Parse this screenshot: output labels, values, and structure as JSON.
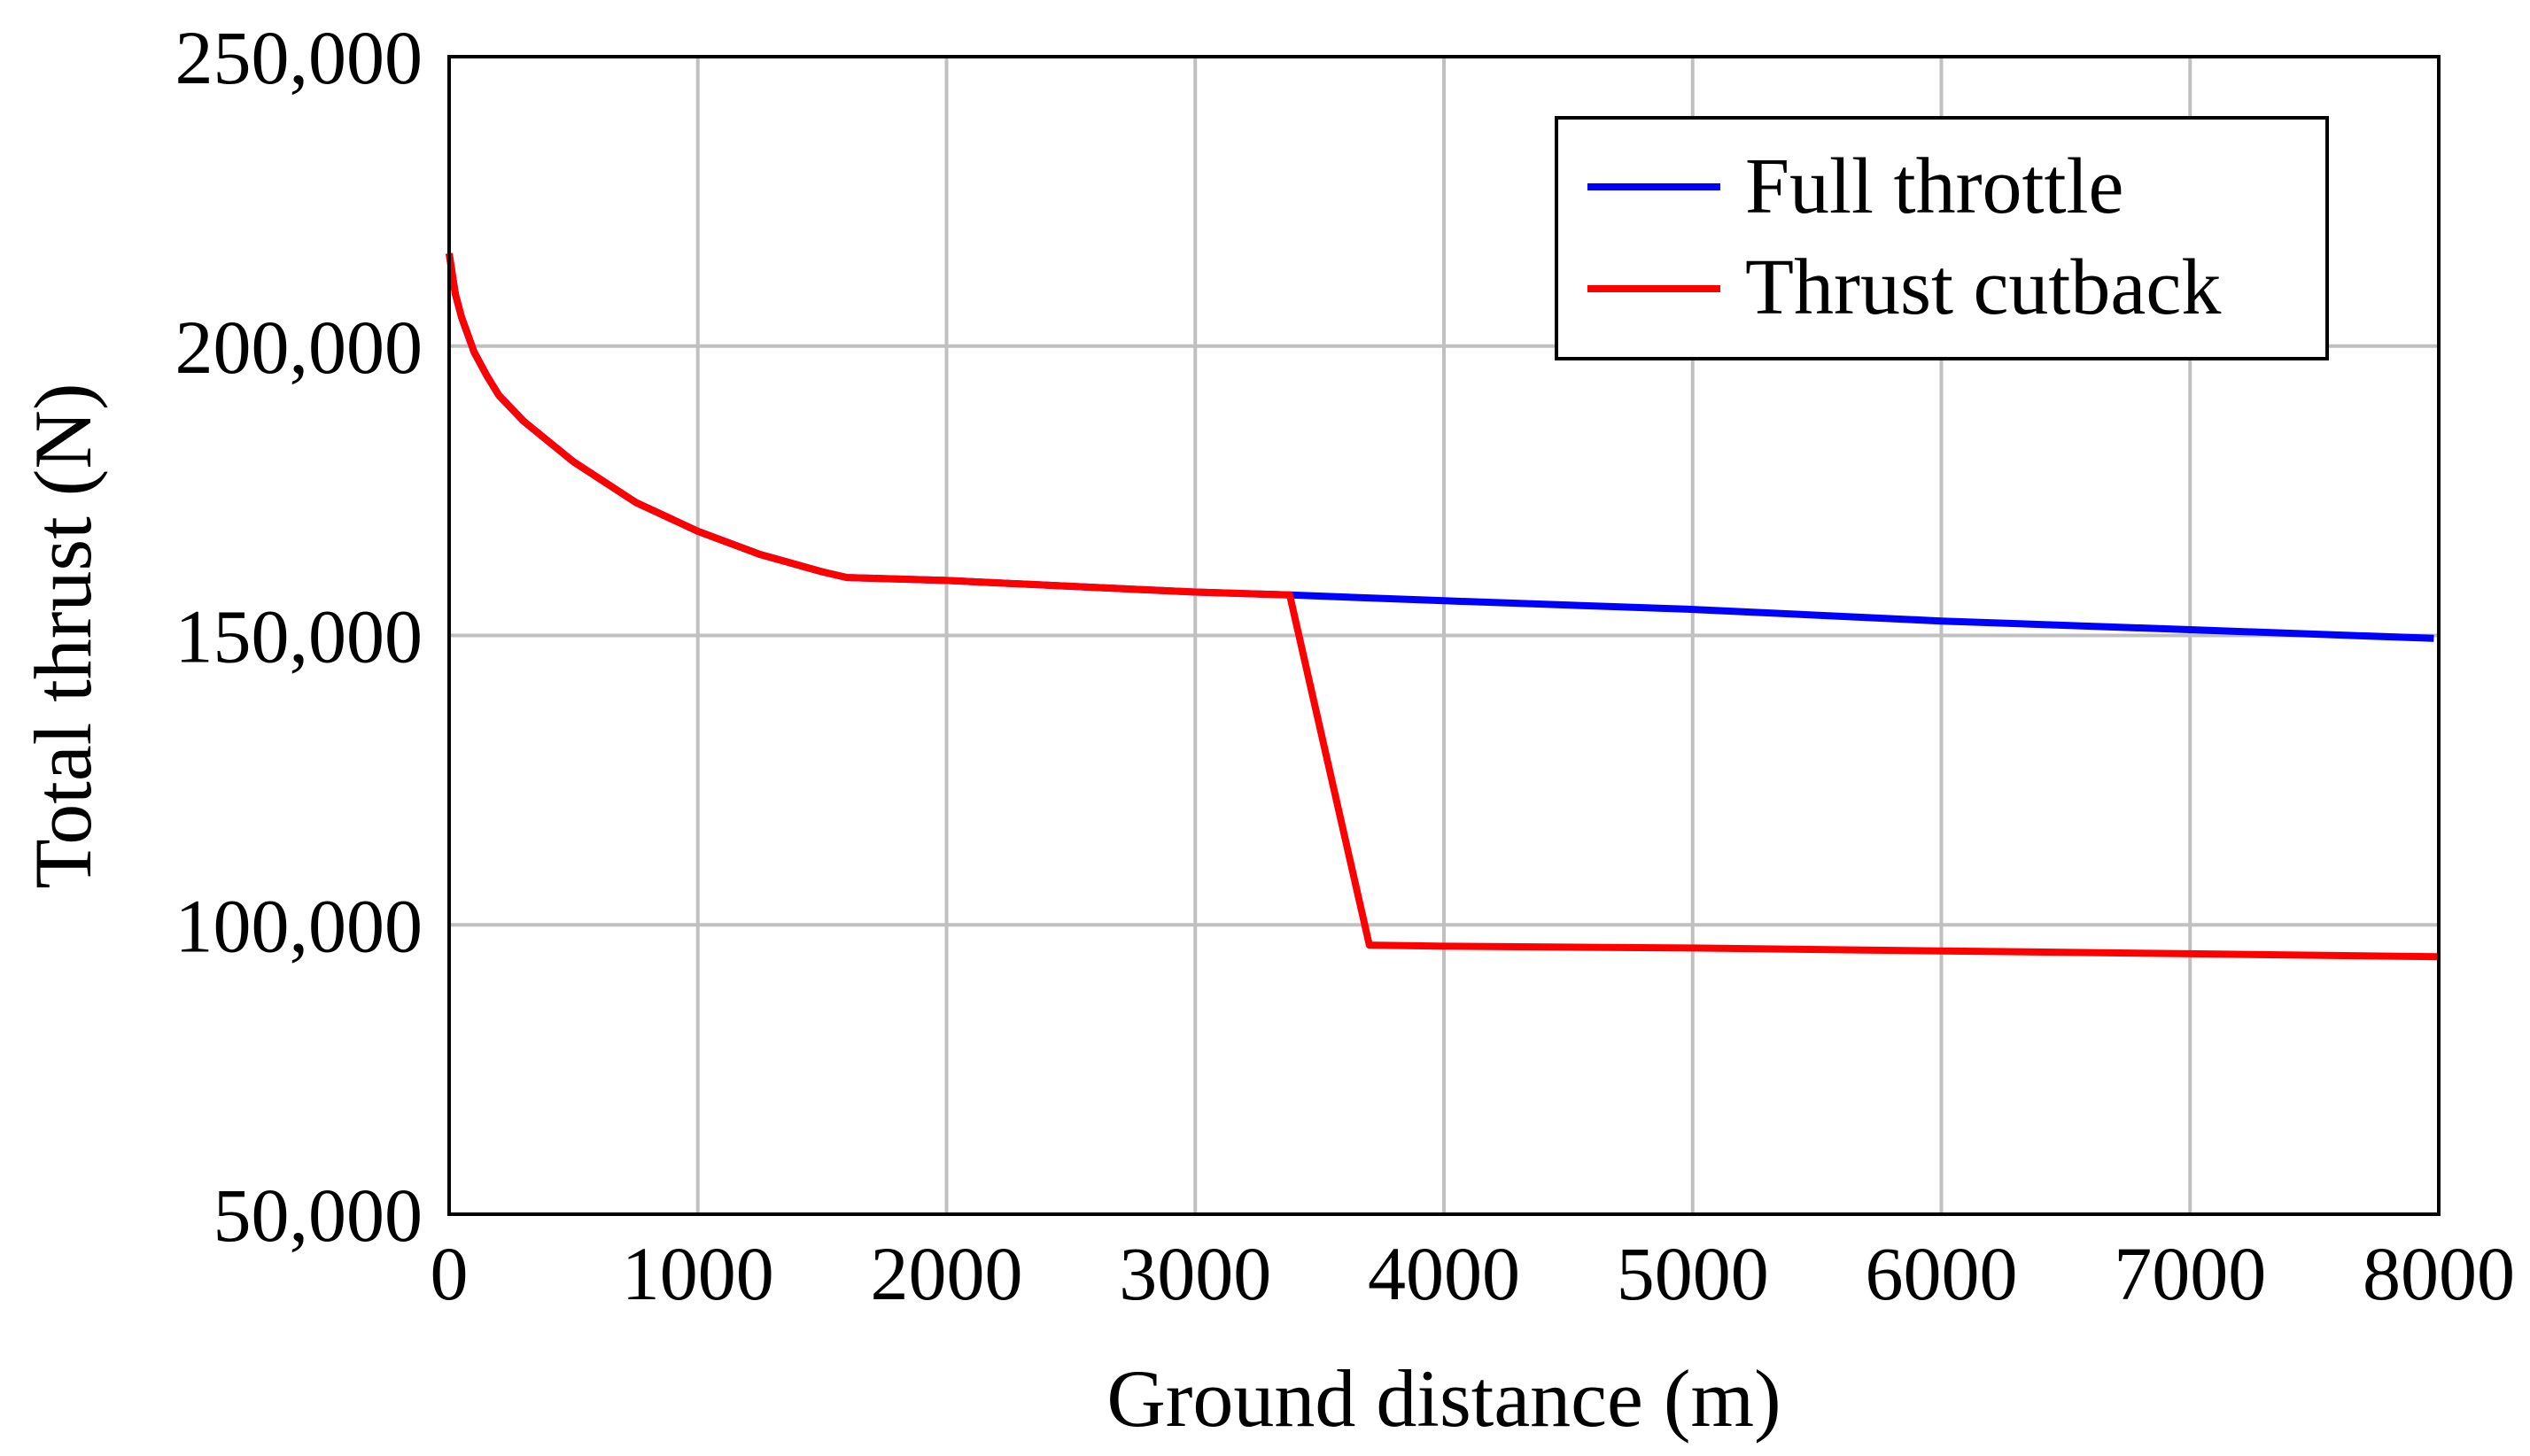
{
  "chart_data": {
    "type": "line",
    "title": "",
    "xlabel": "Ground distance (m)",
    "ylabel": "Total thrust (N)",
    "xlim": [
      0,
      8000
    ],
    "ylim": [
      50000,
      250000
    ],
    "grid": true,
    "legend_position": "top-right",
    "xticks": [
      0,
      1000,
      2000,
      3000,
      4000,
      5000,
      6000,
      7000,
      8000
    ],
    "xtick_labels": [
      "0",
      "1000",
      "2000",
      "3000",
      "4000",
      "5000",
      "6000",
      "7000",
      "8000"
    ],
    "yticks": [
      50000,
      100000,
      150000,
      200000,
      250000
    ],
    "ytick_labels": [
      "50,000",
      "100,000",
      "150,000",
      "200,000",
      "250,000"
    ],
    "series": [
      {
        "name": "Full throttle",
        "color": "#0000ff",
        "x": [
          0,
          25,
          50,
          100,
          150,
          200,
          300,
          500,
          750,
          1000,
          1250,
          1500,
          1600,
          2000,
          2500,
          3000,
          3380,
          4000,
          5000,
          6000,
          7000,
          7980
        ],
        "y": [
          216000,
          209000,
          205000,
          199000,
          195000,
          191500,
          187000,
          180000,
          173000,
          168000,
          164000,
          161000,
          160000,
          159500,
          158500,
          157500,
          157000,
          156000,
          154500,
          152500,
          151000,
          149500
        ]
      },
      {
        "name": "Thrust cutback",
        "color": "#ff0000",
        "x": [
          0,
          25,
          50,
          100,
          150,
          200,
          300,
          500,
          750,
          1000,
          1250,
          1500,
          1600,
          2000,
          2500,
          3000,
          3380,
          3700,
          4000,
          5000,
          6000,
          7000,
          8000
        ],
        "y": [
          216000,
          209000,
          205000,
          199000,
          195000,
          191500,
          187000,
          180000,
          173000,
          168000,
          164000,
          161000,
          160000,
          159500,
          158500,
          157500,
          157000,
          96500,
          96300,
          96000,
          95500,
          95000,
          94500
        ]
      }
    ]
  }
}
